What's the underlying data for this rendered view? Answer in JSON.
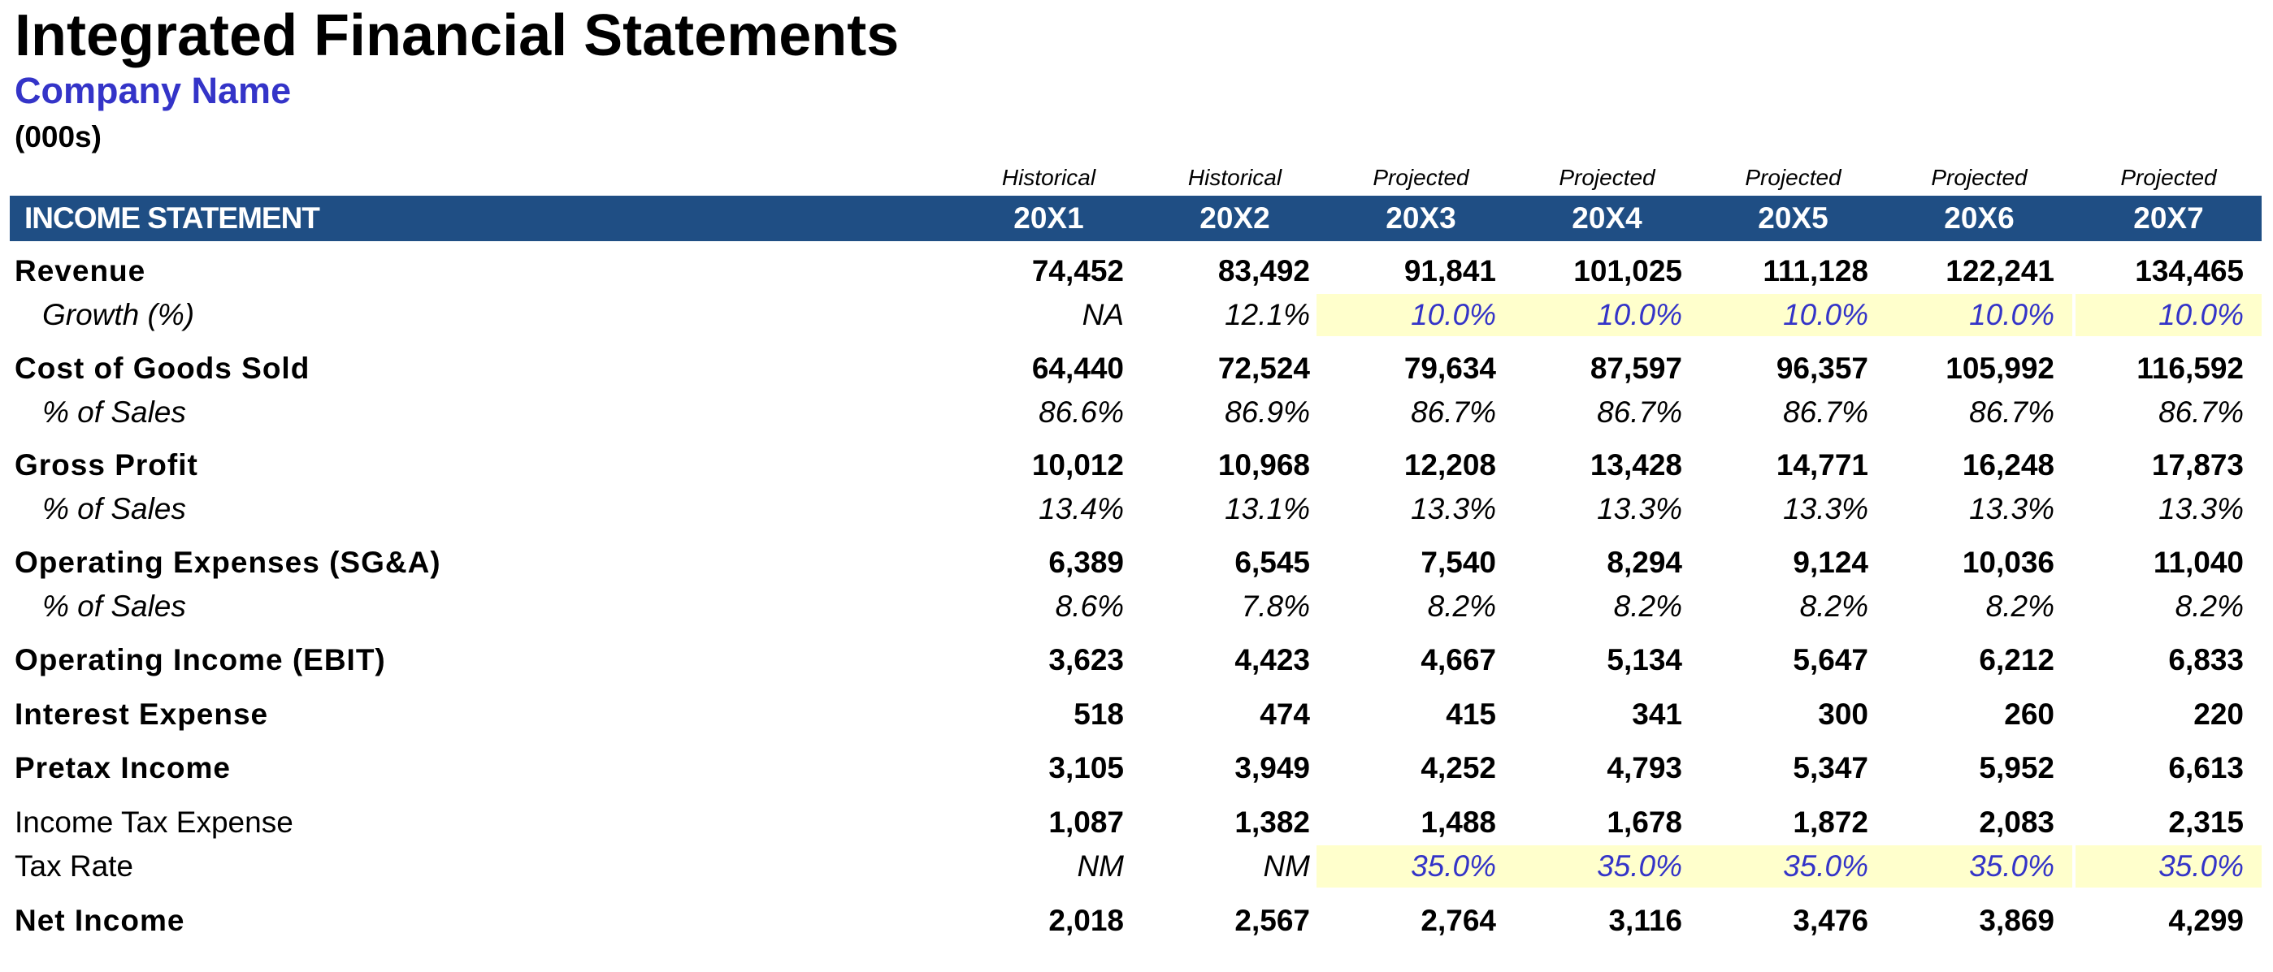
{
  "title": "Integrated Financial Statements",
  "company": "Company Name",
  "units": "(000s)",
  "statuses": [
    "Historical",
    "Historical",
    "Projected",
    "Projected",
    "Projected",
    "Projected",
    "Projected"
  ],
  "section_label": "INCOME STATEMENT",
  "years": [
    "20X1",
    "20X2",
    "20X3",
    "20X4",
    "20X5",
    "20X6",
    "20X7"
  ],
  "colors": {
    "header_bg": "#1f4e84",
    "input_text": "#3434c8",
    "input_bg": "#ffffcc"
  },
  "rows": [
    {
      "label": "Revenue",
      "style": "bold",
      "values": [
        "74,452",
        "83,492",
        "91,841",
        "101,025",
        "111,128",
        "122,241",
        "134,465"
      ]
    },
    {
      "label": "Growth (%)",
      "style": "sub",
      "values": [
        "NA",
        "12.1%",
        "10.0%",
        "10.0%",
        "10.0%",
        "10.0%",
        "10.0%"
      ],
      "input_from": 2
    },
    {
      "label": "Cost of Goods Sold",
      "style": "bold",
      "values": [
        "64,440",
        "72,524",
        "79,634",
        "87,597",
        "96,357",
        "105,992",
        "116,592"
      ]
    },
    {
      "label": "% of Sales",
      "style": "sub",
      "values": [
        "86.6%",
        "86.9%",
        "86.7%",
        "86.7%",
        "86.7%",
        "86.7%",
        "86.7%"
      ]
    },
    {
      "label": "Gross Profit",
      "style": "bold",
      "values": [
        "10,012",
        "10,968",
        "12,208",
        "13,428",
        "14,771",
        "16,248",
        "17,873"
      ]
    },
    {
      "label": "% of Sales",
      "style": "sub",
      "values": [
        "13.4%",
        "13.1%",
        "13.3%",
        "13.3%",
        "13.3%",
        "13.3%",
        "13.3%"
      ]
    },
    {
      "label": "Operating Expenses (SG&A)",
      "style": "bold",
      "values": [
        "6,389",
        "6,545",
        "7,540",
        "8,294",
        "9,124",
        "10,036",
        "11,040"
      ]
    },
    {
      "label": "% of Sales",
      "style": "sub",
      "values": [
        "8.6%",
        "7.8%",
        "8.2%",
        "8.2%",
        "8.2%",
        "8.2%",
        "8.2%"
      ]
    },
    {
      "label": "Operating Income (EBIT)",
      "style": "bold",
      "values": [
        "3,623",
        "4,423",
        "4,667",
        "5,134",
        "5,647",
        "6,212",
        "6,833"
      ]
    },
    {
      "label": "Interest Expense",
      "style": "bold",
      "values": [
        "518",
        "474",
        "415",
        "341",
        "300",
        "260",
        "220"
      ]
    },
    {
      "label": "Pretax Income",
      "style": "bold",
      "values": [
        "3,105",
        "3,949",
        "4,252",
        "4,793",
        "5,347",
        "5,952",
        "6,613"
      ]
    },
    {
      "label": "Income Tax Expense",
      "style": "plain",
      "values": [
        "1,087",
        "1,382",
        "1,488",
        "1,678",
        "1,872",
        "2,083",
        "2,315"
      ]
    },
    {
      "label": "Tax Rate",
      "style": "plainital",
      "values": [
        "NM",
        "NM",
        "35.0%",
        "35.0%",
        "35.0%",
        "35.0%",
        "35.0%"
      ],
      "input_from": 2
    },
    {
      "label": "Net Income",
      "style": "bold",
      "values": [
        "2,018",
        "2,567",
        "2,764",
        "3,116",
        "3,476",
        "3,869",
        "4,299"
      ]
    }
  ]
}
